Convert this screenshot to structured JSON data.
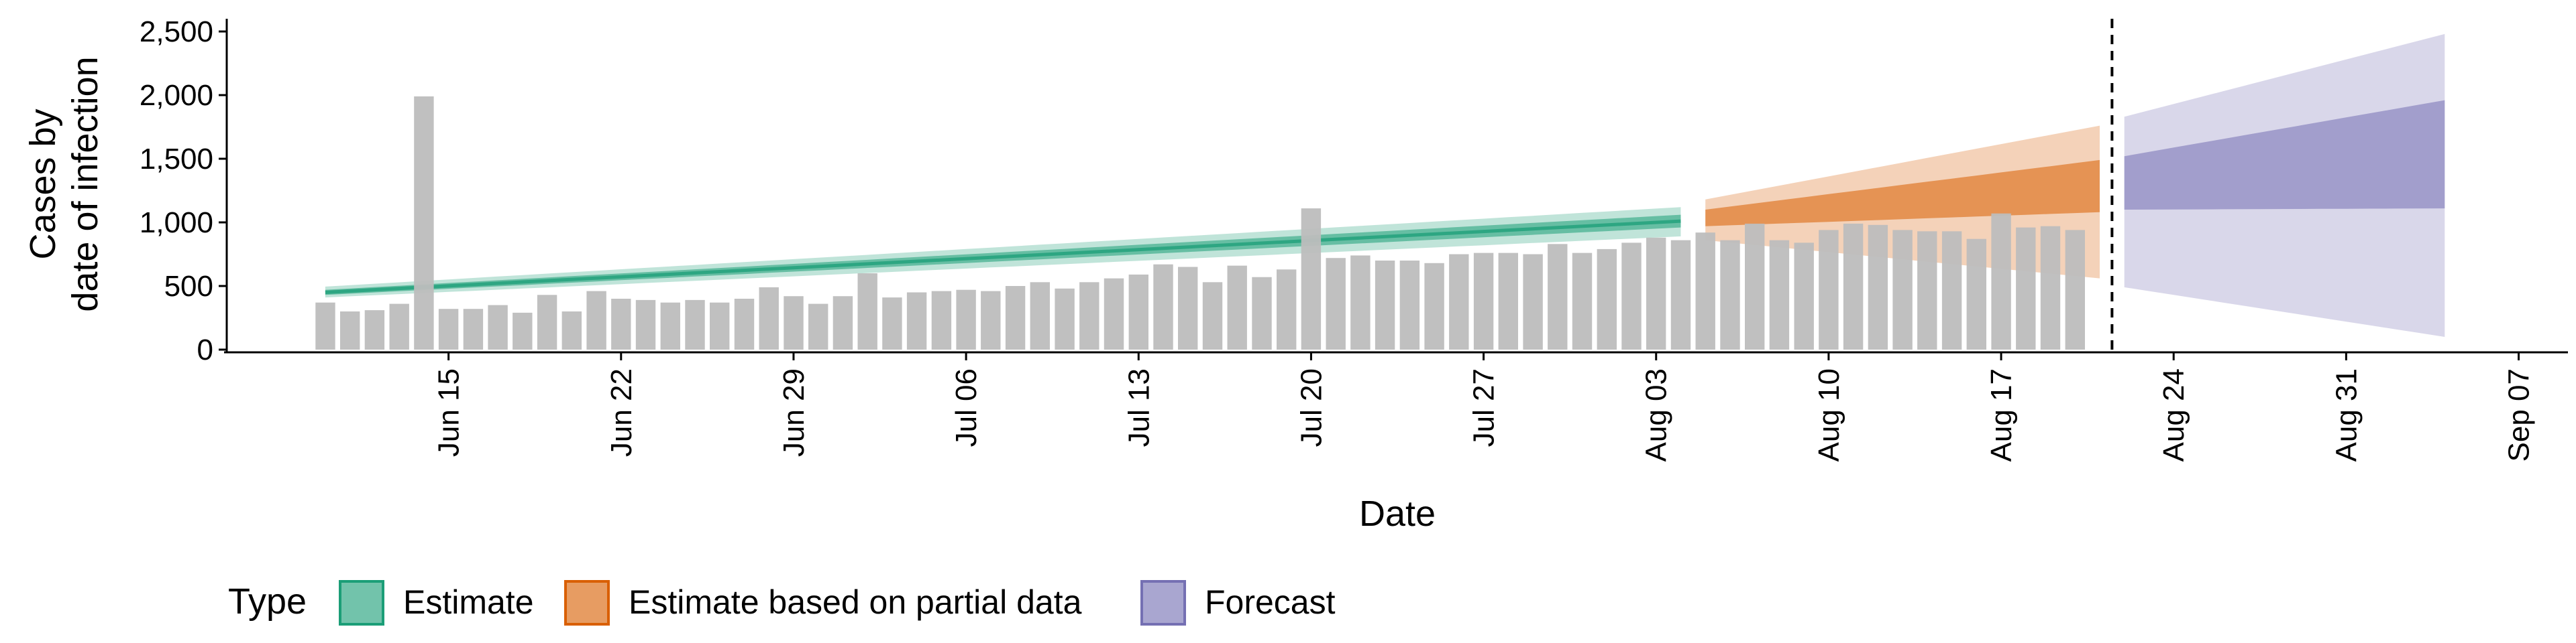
{
  "chart_data": {
    "type": "bar",
    "title": "",
    "xlabel": "Date",
    "ylabel_line1": "Cases by",
    "ylabel_line2": "date of infection",
    "ylim": [
      0,
      2600
    ],
    "y_ticks": [
      0,
      500,
      1000,
      1500,
      2000,
      2500
    ],
    "y_tick_labels": [
      "0",
      "500",
      "1,000",
      "1,500",
      "2,000",
      "2,500"
    ],
    "x_range": [
      "2021-06-06",
      "2021-09-09"
    ],
    "x_ticks": [
      "2021-06-15",
      "2021-06-22",
      "2021-06-29",
      "2021-07-06",
      "2021-07-13",
      "2021-07-20",
      "2021-07-27",
      "2021-08-03",
      "2021-08-10",
      "2021-08-17",
      "2021-08-24",
      "2021-08-31",
      "2021-09-07"
    ],
    "x_tick_labels": [
      "Jun 15",
      "Jun 22",
      "Jun 29",
      "Jul 06",
      "Jul 13",
      "Jul 20",
      "Jul 27",
      "Aug 03",
      "Aug 10",
      "Aug 17",
      "Aug 24",
      "Aug 31",
      "Sep 07"
    ],
    "grid": false,
    "legend_position": "bottom",
    "legend_title": "Type",
    "bars_start": "2021-06-10",
    "bar_color": "#bdbdbd",
    "bar_values": [
      370,
      300,
      310,
      360,
      1990,
      320,
      320,
      350,
      290,
      430,
      300,
      460,
      400,
      390,
      370,
      390,
      370,
      400,
      490,
      420,
      360,
      420,
      600,
      410,
      450,
      460,
      470,
      460,
      500,
      530,
      480,
      530,
      560,
      590,
      670,
      650,
      530,
      660,
      570,
      630,
      1110,
      720,
      740,
      700,
      700,
      680,
      750,
      760,
      760,
      750,
      830,
      760,
      790,
      840,
      880,
      860,
      920,
      860,
      990,
      860,
      840,
      940,
      990,
      980,
      940,
      930,
      930,
      870,
      1070,
      960,
      970,
      940
    ],
    "nowcast_date": "2021-08-21",
    "series": [
      {
        "name": "Estimate",
        "color": "#1b9e77",
        "start": "2021-06-10",
        "end": "2021-08-04",
        "median": [
          450,
          1010
        ],
        "inner": [
          [
            430,
            470
          ],
          [
            960,
            1060
          ]
        ],
        "outer": [
          [
            410,
            495
          ],
          [
            890,
            1120
          ]
        ]
      },
      {
        "name": "Estimate based on partial data",
        "color": "#d95f02",
        "start": "2021-08-05",
        "end": "2021-08-21",
        "inner": [
          [
            970,
            1100
          ],
          [
            1080,
            1490
          ]
        ],
        "outer": [
          [
            860,
            1180
          ],
          [
            560,
            1760
          ]
        ]
      },
      {
        "name": "Forecast",
        "color": "#7570b3",
        "start": "2021-08-22",
        "end": "2021-09-04",
        "inner": [
          [
            1100,
            1520
          ],
          [
            1110,
            1960
          ]
        ],
        "outer": [
          [
            490,
            1830
          ],
          [
            100,
            2480
          ]
        ]
      }
    ]
  }
}
